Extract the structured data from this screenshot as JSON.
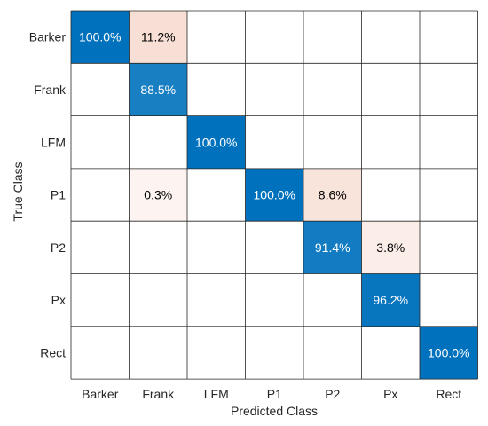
{
  "chart_data": {
    "type": "heatmap",
    "xlabel": "Predicted Class",
    "ylabel": "True Class",
    "x_categories": [
      "Barker",
      "Frank",
      "LFM",
      "P1",
      "P2",
      "Px",
      "Rect"
    ],
    "y_categories": [
      "Barker",
      "Frank",
      "LFM",
      "P1",
      "P2",
      "Px",
      "Rect"
    ],
    "values": [
      [
        100.0,
        11.2,
        null,
        null,
        null,
        null,
        null
      ],
      [
        null,
        88.5,
        null,
        null,
        null,
        null,
        null
      ],
      [
        null,
        null,
        100.0,
        null,
        null,
        null,
        null
      ],
      [
        null,
        0.3,
        null,
        100.0,
        8.6,
        null,
        null
      ],
      [
        null,
        null,
        null,
        null,
        91.4,
        3.8,
        null
      ],
      [
        null,
        null,
        null,
        null,
        null,
        96.2,
        null
      ],
      [
        null,
        null,
        null,
        null,
        null,
        null,
        100.0
      ]
    ],
    "value_labels": [
      [
        "100.0%",
        "11.2%",
        "",
        "",
        "",
        "",
        ""
      ],
      [
        "",
        "88.5%",
        "",
        "",
        "",
        "",
        ""
      ],
      [
        "",
        "",
        "100.0%",
        "",
        "",
        "",
        ""
      ],
      [
        "",
        "0.3%",
        "",
        "100.0%",
        "8.6%",
        "",
        ""
      ],
      [
        "",
        "",
        "",
        "",
        "91.4%",
        "3.8%",
        ""
      ],
      [
        "",
        "",
        "",
        "",
        "",
        "96.2%",
        ""
      ],
      [
        "",
        "",
        "",
        "",
        "",
        "",
        "100.0%"
      ]
    ],
    "unit": "%",
    "colors": {
      "diagonal_high": "#0072bd",
      "diagonal_low": "#2a88c8",
      "off_diagonal_high": "#f8ddd3",
      "off_diagonal_low": "#fdf4f1",
      "empty": "#ffffff",
      "grid": "#262626",
      "text_on_dark": "#ffffff",
      "text_on_light": "#000000"
    },
    "grid": true,
    "legend": "none"
  }
}
